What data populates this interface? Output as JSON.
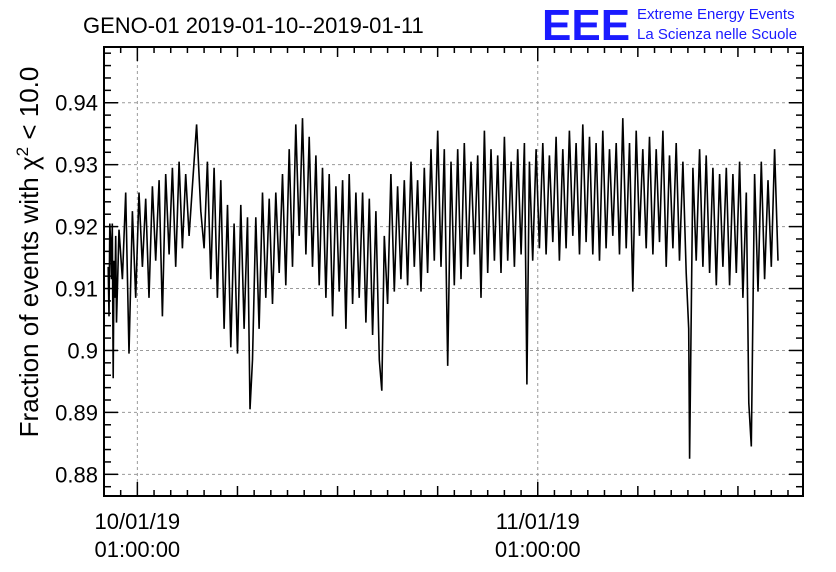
{
  "header": {
    "title": "GENO-01 2019-01-10--2019-01-11",
    "logo_mark": "EEE",
    "logo_line1": "Extreme Energy Events",
    "logo_line2": "La Scienza nelle Scuole",
    "logo_color": "#1a1aff"
  },
  "chart_data": {
    "type": "line",
    "title": "GENO-01 2019-01-10--2019-01-11",
    "ylabel": "Fraction of events with χ² < 10.0",
    "ylabel_parts": {
      "prefix": "Fraction of events with ",
      "symbol": "χ",
      "sup": "2",
      "suffix": " < 10.0"
    },
    "xlabel": "",
    "x_unit": "hours since 10/01/19 00:00:00",
    "xlim": [
      -1.0,
      40.9
    ],
    "ylim": [
      0.8765,
      0.949
    ],
    "grid": true,
    "x_major_ticks": [
      {
        "x": 1.0,
        "label_date": "10/01/19",
        "label_time": "01:00:00"
      },
      {
        "x": 25.0,
        "label_date": "11/01/19",
        "label_time": "01:00:00"
      }
    ],
    "x_minor_ticks": [
      7,
      13,
      19,
      31,
      37
    ],
    "y_ticks": [
      {
        "y": 0.88,
        "label": "0.88"
      },
      {
        "y": 0.89,
        "label": "0.89"
      },
      {
        "y": 0.9,
        "label": "0.9"
      },
      {
        "y": 0.91,
        "label": "0.91"
      },
      {
        "y": 0.92,
        "label": "0.92"
      },
      {
        "y": 0.93,
        "label": "0.93"
      },
      {
        "y": 0.94,
        "label": "0.94"
      }
    ],
    "series": [
      {
        "color": "#000000",
        "points": [
          [
            -0.75,
            0.9135
          ],
          [
            -0.7,
            0.9055
          ],
          [
            -0.65,
            0.9205
          ],
          [
            -0.6,
            0.9175
          ],
          [
            -0.55,
            0.9115
          ],
          [
            -0.5,
            0.9205
          ],
          [
            -0.45,
            0.8955
          ],
          [
            -0.4,
            0.9145
          ],
          [
            -0.35,
            0.9085
          ],
          [
            -0.3,
            0.9185
          ],
          [
            -0.25,
            0.9045
          ],
          [
            -0.1,
            0.9195
          ],
          [
            0.1,
            0.9115
          ],
          [
            0.3,
            0.9255
          ],
          [
            0.5,
            0.8995
          ],
          [
            0.7,
            0.9225
          ],
          [
            0.9,
            0.9085
          ],
          [
            1.1,
            0.9255
          ],
          [
            1.3,
            0.9135
          ],
          [
            1.5,
            0.9245
          ],
          [
            1.7,
            0.9085
          ],
          [
            1.9,
            0.9265
          ],
          [
            2.1,
            0.9145
          ],
          [
            2.3,
            0.9275
          ],
          [
            2.5,
            0.9055
          ],
          [
            2.7,
            0.9285
          ],
          [
            2.9,
            0.9155
          ],
          [
            3.1,
            0.9295
          ],
          [
            3.3,
            0.9135
          ],
          [
            3.5,
            0.9305
          ],
          [
            3.7,
            0.9165
          ],
          [
            3.9,
            0.9285
          ],
          [
            4.1,
            0.9185
          ],
          [
            4.3,
            0.9265
          ],
          [
            4.55,
            0.9365
          ],
          [
            4.8,
            0.9225
          ],
          [
            5.0,
            0.9165
          ],
          [
            5.2,
            0.9305
          ],
          [
            5.4,
            0.9115
          ],
          [
            5.6,
            0.9295
          ],
          [
            5.8,
            0.9085
          ],
          [
            6.0,
            0.9275
          ],
          [
            6.2,
            0.9035
          ],
          [
            6.4,
            0.9235
          ],
          [
            6.6,
            0.9005
          ],
          [
            6.8,
            0.9205
          ],
          [
            7.0,
            0.8995
          ],
          [
            7.2,
            0.9235
          ],
          [
            7.4,
            0.9035
          ],
          [
            7.6,
            0.9215
          ],
          [
            7.75,
            0.8905
          ],
          [
            7.9,
            0.8985
          ],
          [
            8.1,
            0.9215
          ],
          [
            8.3,
            0.9035
          ],
          [
            8.5,
            0.9255
          ],
          [
            8.7,
            0.9085
          ],
          [
            8.9,
            0.9245
          ],
          [
            9.1,
            0.9075
          ],
          [
            9.3,
            0.9255
          ],
          [
            9.5,
            0.9125
          ],
          [
            9.7,
            0.9285
          ],
          [
            9.9,
            0.9105
          ],
          [
            10.1,
            0.9325
          ],
          [
            10.3,
            0.9135
          ],
          [
            10.5,
            0.9365
          ],
          [
            10.7,
            0.9185
          ],
          [
            10.9,
            0.9375
          ],
          [
            11.1,
            0.9155
          ],
          [
            11.3,
            0.9345
          ],
          [
            11.5,
            0.9135
          ],
          [
            11.7,
            0.9315
          ],
          [
            11.9,
            0.9105
          ],
          [
            12.1,
            0.9295
          ],
          [
            12.3,
            0.9085
          ],
          [
            12.5,
            0.9285
          ],
          [
            12.7,
            0.9055
          ],
          [
            12.9,
            0.9265
          ],
          [
            13.1,
            0.9095
          ],
          [
            13.3,
            0.9275
          ],
          [
            13.5,
            0.9035
          ],
          [
            13.7,
            0.9285
          ],
          [
            13.9,
            0.9075
          ],
          [
            14.1,
            0.9255
          ],
          [
            14.3,
            0.9085
          ],
          [
            14.5,
            0.9255
          ],
          [
            14.7,
            0.9045
          ],
          [
            14.9,
            0.9245
          ],
          [
            15.1,
            0.9025
          ],
          [
            15.3,
            0.9225
          ],
          [
            15.5,
            0.8985
          ],
          [
            15.65,
            0.8935
          ],
          [
            15.8,
            0.9185
          ],
          [
            16.0,
            0.9075
          ],
          [
            16.2,
            0.9285
          ],
          [
            16.4,
            0.9095
          ],
          [
            16.6,
            0.9265
          ],
          [
            16.8,
            0.9115
          ],
          [
            17.0,
            0.9275
          ],
          [
            17.2,
            0.9105
          ],
          [
            17.4,
            0.9305
          ],
          [
            17.6,
            0.9135
          ],
          [
            17.8,
            0.9275
          ],
          [
            18.0,
            0.9095
          ],
          [
            18.2,
            0.9295
          ],
          [
            18.4,
            0.9125
          ],
          [
            18.6,
            0.9325
          ],
          [
            18.8,
            0.9145
          ],
          [
            19.0,
            0.9355
          ],
          [
            19.2,
            0.9135
          ],
          [
            19.4,
            0.9325
          ],
          [
            19.6,
            0.8975
          ],
          [
            19.8,
            0.9305
          ],
          [
            20.0,
            0.9105
          ],
          [
            20.2,
            0.9325
          ],
          [
            20.4,
            0.9115
          ],
          [
            20.6,
            0.9335
          ],
          [
            20.8,
            0.9135
          ],
          [
            21.0,
            0.9305
          ],
          [
            21.2,
            0.9155
          ],
          [
            21.4,
            0.9315
          ],
          [
            21.6,
            0.9085
          ],
          [
            21.8,
            0.9355
          ],
          [
            22.0,
            0.9125
          ],
          [
            22.2,
            0.9325
          ],
          [
            22.4,
            0.9145
          ],
          [
            22.6,
            0.9315
          ],
          [
            22.8,
            0.9125
          ],
          [
            23.0,
            0.9345
          ],
          [
            23.2,
            0.9145
          ],
          [
            23.4,
            0.9305
          ],
          [
            23.6,
            0.9135
          ],
          [
            23.8,
            0.9325
          ],
          [
            24.0,
            0.9155
          ],
          [
            24.2,
            0.9335
          ],
          [
            24.35,
            0.8945
          ],
          [
            24.5,
            0.9305
          ],
          [
            24.7,
            0.9145
          ],
          [
            24.9,
            0.9325
          ],
          [
            25.1,
            0.9165
          ],
          [
            25.3,
            0.9335
          ],
          [
            25.5,
            0.9155
          ],
          [
            25.7,
            0.9315
          ],
          [
            25.9,
            0.9175
          ],
          [
            26.1,
            0.9345
          ],
          [
            26.3,
            0.9145
          ],
          [
            26.5,
            0.9325
          ],
          [
            26.7,
            0.9165
          ],
          [
            26.9,
            0.9355
          ],
          [
            27.1,
            0.9185
          ],
          [
            27.3,
            0.9335
          ],
          [
            27.5,
            0.9155
          ],
          [
            27.7,
            0.9365
          ],
          [
            27.9,
            0.9175
          ],
          [
            28.1,
            0.9345
          ],
          [
            28.3,
            0.9155
          ],
          [
            28.5,
            0.9335
          ],
          [
            28.7,
            0.9145
          ],
          [
            28.9,
            0.9355
          ],
          [
            29.1,
            0.9165
          ],
          [
            29.3,
            0.9325
          ],
          [
            29.5,
            0.9185
          ],
          [
            29.7,
            0.9335
          ],
          [
            29.9,
            0.9155
          ],
          [
            30.1,
            0.9375
          ],
          [
            30.3,
            0.9165
          ],
          [
            30.5,
            0.9335
          ],
          [
            30.7,
            0.9095
          ],
          [
            30.9,
            0.9355
          ],
          [
            31.1,
            0.9185
          ],
          [
            31.3,
            0.9325
          ],
          [
            31.5,
            0.9165
          ],
          [
            31.7,
            0.9345
          ],
          [
            31.9,
            0.9155
          ],
          [
            32.1,
            0.9325
          ],
          [
            32.3,
            0.9175
          ],
          [
            32.5,
            0.9355
          ],
          [
            32.7,
            0.9135
          ],
          [
            32.9,
            0.9315
          ],
          [
            33.1,
            0.9165
          ],
          [
            33.3,
            0.9335
          ],
          [
            33.5,
            0.9145
          ],
          [
            33.7,
            0.9305
          ],
          [
            33.9,
            0.9125
          ],
          [
            34.05,
            0.9035
          ],
          [
            34.1,
            0.8825
          ],
          [
            34.3,
            0.9295
          ],
          [
            34.5,
            0.9145
          ],
          [
            34.7,
            0.9325
          ],
          [
            34.9,
            0.9135
          ],
          [
            35.1,
            0.9315
          ],
          [
            35.3,
            0.9125
          ],
          [
            35.5,
            0.9295
          ],
          [
            35.7,
            0.9105
          ],
          [
            35.9,
            0.9285
          ],
          [
            36.1,
            0.9135
          ],
          [
            36.3,
            0.9295
          ],
          [
            36.5,
            0.9105
          ],
          [
            36.7,
            0.9285
          ],
          [
            36.9,
            0.9125
          ],
          [
            37.1,
            0.9305
          ],
          [
            37.3,
            0.9085
          ],
          [
            37.5,
            0.9255
          ],
          [
            37.65,
            0.8915
          ],
          [
            37.8,
            0.8845
          ],
          [
            38.0,
            0.9285
          ],
          [
            38.2,
            0.9095
          ],
          [
            38.4,
            0.9305
          ],
          [
            38.6,
            0.9115
          ],
          [
            38.8,
            0.9275
          ],
          [
            39.0,
            0.9135
          ],
          [
            39.2,
            0.9325
          ],
          [
            39.4,
            0.9145
          ]
        ]
      }
    ]
  }
}
